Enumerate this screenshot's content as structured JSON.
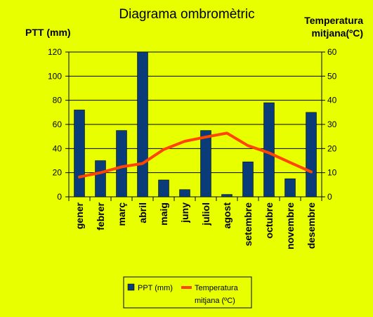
{
  "chart_data": {
    "type": "bar",
    "title": "Diagrama ombromètric",
    "ylabel": "PTT (mm)",
    "y2label": [
      "Temperatura",
      "mitjana(ºC)"
    ],
    "categories": [
      "gener",
      "febrer",
      "març",
      "abril",
      "maig",
      "juny",
      "juliol",
      "agost",
      "setembre",
      "octubre",
      "novembre",
      "desembre"
    ],
    "ylim": [
      0,
      120
    ],
    "yticks": [
      0,
      20,
      40,
      60,
      80,
      100,
      120
    ],
    "y2lim": [
      0,
      60
    ],
    "y2ticks": [
      0,
      10,
      20,
      30,
      40,
      50,
      60
    ],
    "grid": true,
    "legend_position": "bottom",
    "series": [
      {
        "name": "PPT (mm)",
        "type": "bar",
        "axis": "left",
        "color": "#0b3c7a",
        "values": [
          72,
          30,
          55,
          120,
          14,
          6,
          55,
          2,
          29,
          78,
          15,
          70
        ]
      },
      {
        "name": "Temperatura mitjana (ºC)",
        "legend_lines": [
          "Temperatura",
          "mitjana (ºC)"
        ],
        "type": "line",
        "axis": "right",
        "color": "#ff4500",
        "values": [
          8.2,
          10,
          12.4,
          13.8,
          19.6,
          23,
          24.8,
          26.4,
          21.2,
          18.2,
          14.2,
          10.3
        ]
      }
    ]
  }
}
